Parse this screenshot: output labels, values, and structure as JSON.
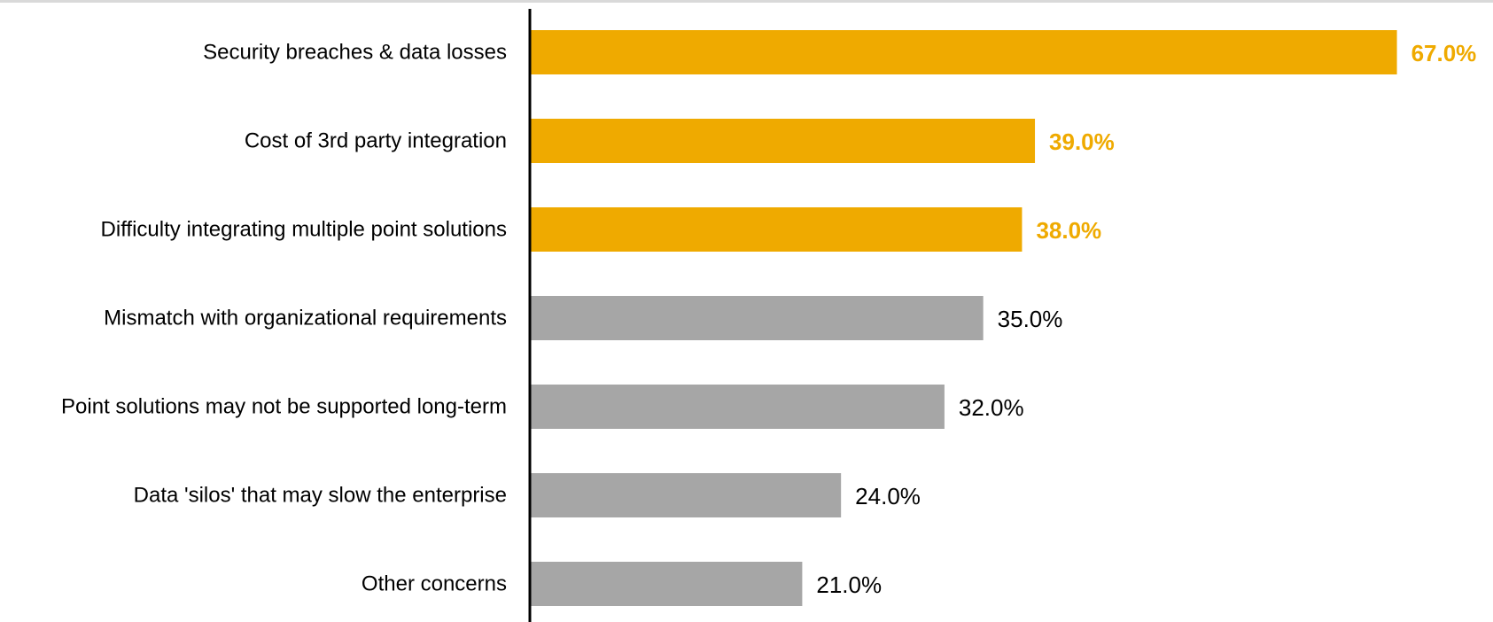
{
  "chart_data": {
    "type": "bar",
    "orientation": "horizontal",
    "categories": [
      "Security breaches & data losses",
      "Cost of 3rd party integration",
      "Difficulty integrating multiple point solutions",
      "Mismatch with organizational requirements",
      "Point solutions may not be supported long-term",
      "Data 'silos' that may slow the enterprise",
      "Other concerns"
    ],
    "values": [
      67.0,
      39.0,
      38.0,
      35.0,
      32.0,
      24.0,
      21.0
    ],
    "value_labels": [
      "67.0%",
      "39.0%",
      "38.0%",
      "35.0%",
      "32.0%",
      "24.0%",
      "21.0%"
    ],
    "highlighted": [
      true,
      true,
      true,
      false,
      false,
      false,
      false
    ],
    "xlim": [
      0,
      74.5
    ],
    "grid": false,
    "colors": {
      "highlight": "#EFAA00",
      "default": "#A6A6A6",
      "axis": "#000000",
      "highlight_label": "#EFAA00",
      "default_label": "#000000"
    }
  }
}
